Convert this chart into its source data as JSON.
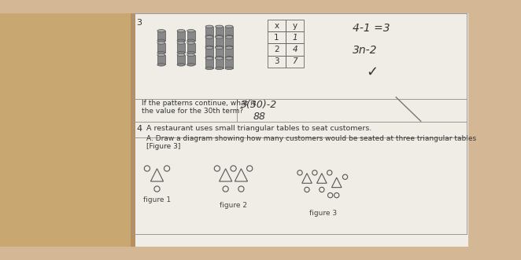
{
  "bg_color": "#d4b896",
  "paper_color": "#f0ede6",
  "left_panel_color": "#c8a870",
  "title_num3": "3",
  "title_num4": "4",
  "table_x_vals": [
    "x",
    "1",
    "2",
    "3"
  ],
  "table_y_vals": [
    "y",
    "1",
    "4",
    "7"
  ],
  "formula_right": "4-1 =3",
  "formula_right2": "3n-2",
  "question_30th_line1": "If the patterns continue, what is",
  "question_30th_line2": "the value for the 30th term?",
  "answer_30th_work": "3(30)-2",
  "answer_30th": "88",
  "question4_main": "A restaurant uses small triangular tables to seat customers.",
  "question4_sub_line1": "A. Draw a diagram showing how many customers would be seated at three triangular tables",
  "question4_sub_line2": "[Figure 3]",
  "fig1_label": "figure 1",
  "fig2_label": "figure 2",
  "fig3_label": "figure 3",
  "line_color": "#999999",
  "text_color": "#333333",
  "cyl_color": "#888888",
  "cyl_top_color": "#aaaaaa",
  "cyl_edge": "#555555",
  "tri_color": "#555555",
  "circle_color": "#666666"
}
